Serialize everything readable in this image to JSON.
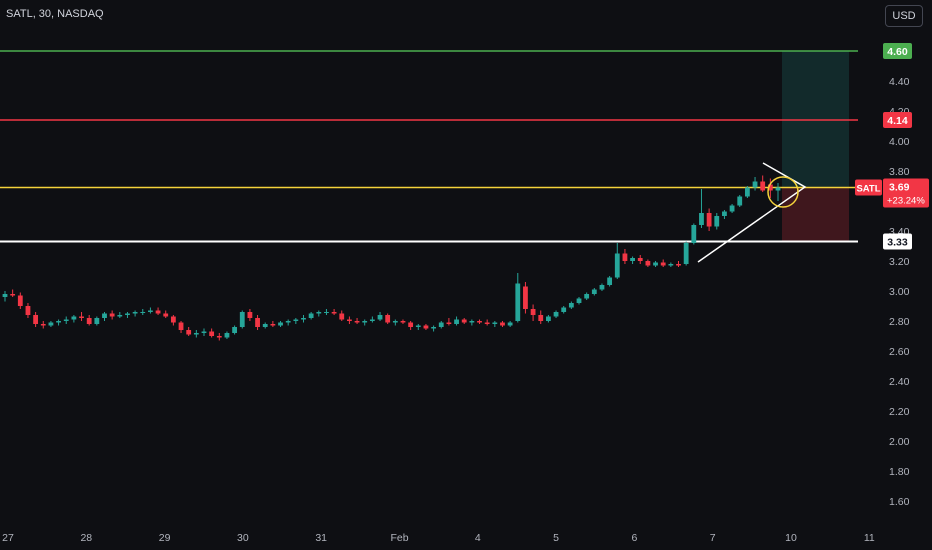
{
  "header": {
    "title": "SATL, 30, NASDAQ",
    "currency": "USD"
  },
  "colors": {
    "up": "#26a69a",
    "down": "#f23645",
    "green_line": "#4caf50",
    "red_line": "#f23645",
    "yellow_line": "#f5d33b",
    "white_line": "#ffffff",
    "bg": "#0e0f13"
  },
  "chart_data": {
    "type": "candlestick",
    "symbol": "SATL",
    "interval": "30",
    "exchange": "NASDAQ",
    "ylim": [
      1.5,
      4.75
    ],
    "y_ticks": [
      "1.60",
      "1.80",
      "2.00",
      "2.20",
      "2.40",
      "2.60",
      "2.80",
      "3.00",
      "3.20",
      "3.40",
      "3.60",
      "3.80",
      "4.00",
      "4.20",
      "4.40"
    ],
    "x_ticks": [
      {
        "label": "27",
        "day": 0
      },
      {
        "label": "28",
        "day": 1
      },
      {
        "label": "29",
        "day": 2
      },
      {
        "label": "30",
        "day": 3
      },
      {
        "label": "31",
        "day": 4
      },
      {
        "label": "Feb",
        "day": 5
      },
      {
        "label": "4",
        "day": 6
      },
      {
        "label": "5",
        "day": 7
      },
      {
        "label": "6",
        "day": 8
      },
      {
        "label": "7",
        "day": 9
      },
      {
        "label": "10",
        "day": 10
      },
      {
        "label": "11",
        "day": 11
      }
    ],
    "price_lines": [
      {
        "name": "target",
        "value": 4.6,
        "label": "4.60"
      },
      {
        "name": "stop",
        "value": 4.14,
        "label": "4.14"
      },
      {
        "name": "entry",
        "value": 3.69,
        "label": "3.69"
      },
      {
        "name": "support",
        "value": 3.33,
        "label": "3.33"
      }
    ],
    "last_price": {
      "symbol": "SATL",
      "price": "3.69",
      "change": "+23.24%"
    },
    "candles": [
      [
        2.96,
        3.0,
        2.93,
        2.98
      ],
      [
        2.98,
        3.01,
        2.96,
        2.97
      ],
      [
        2.97,
        2.99,
        2.88,
        2.9
      ],
      [
        2.9,
        2.92,
        2.82,
        2.84
      ],
      [
        2.84,
        2.86,
        2.76,
        2.78
      ],
      [
        2.78,
        2.8,
        2.75,
        2.77
      ],
      [
        2.77,
        2.8,
        2.76,
        2.79
      ],
      [
        2.79,
        2.81,
        2.77,
        2.8
      ],
      [
        2.8,
        2.83,
        2.78,
        2.81
      ],
      [
        2.81,
        2.84,
        2.79,
        2.83
      ],
      [
        2.83,
        2.86,
        2.8,
        2.82
      ],
      [
        2.82,
        2.84,
        2.77,
        2.78
      ],
      [
        2.78,
        2.83,
        2.77,
        2.82
      ],
      [
        2.82,
        2.86,
        2.8,
        2.85
      ],
      [
        2.85,
        2.87,
        2.81,
        2.83
      ],
      [
        2.83,
        2.86,
        2.82,
        2.84
      ],
      [
        2.84,
        2.86,
        2.82,
        2.85
      ],
      [
        2.85,
        2.87,
        2.83,
        2.86
      ],
      [
        2.86,
        2.88,
        2.84,
        2.86
      ],
      [
        2.86,
        2.89,
        2.85,
        2.87
      ],
      [
        2.87,
        2.89,
        2.84,
        2.85
      ],
      [
        2.85,
        2.87,
        2.82,
        2.83
      ],
      [
        2.83,
        2.84,
        2.77,
        2.79
      ],
      [
        2.79,
        2.8,
        2.72,
        2.74
      ],
      [
        2.74,
        2.76,
        2.7,
        2.71
      ],
      [
        2.71,
        2.74,
        2.69,
        2.72
      ],
      [
        2.72,
        2.75,
        2.7,
        2.73
      ],
      [
        2.73,
        2.75,
        2.69,
        2.7
      ],
      [
        2.7,
        2.72,
        2.67,
        2.69
      ],
      [
        2.69,
        2.73,
        2.68,
        2.72
      ],
      [
        2.72,
        2.77,
        2.71,
        2.76
      ],
      [
        2.76,
        2.87,
        2.75,
        2.86
      ],
      [
        2.86,
        2.88,
        2.8,
        2.82
      ],
      [
        2.82,
        2.84,
        2.74,
        2.76
      ],
      [
        2.76,
        2.79,
        2.75,
        2.78
      ],
      [
        2.78,
        2.8,
        2.76,
        2.77
      ],
      [
        2.77,
        2.8,
        2.76,
        2.79
      ],
      [
        2.79,
        2.81,
        2.77,
        2.8
      ],
      [
        2.8,
        2.82,
        2.78,
        2.81
      ],
      [
        2.81,
        2.84,
        2.79,
        2.82
      ],
      [
        2.82,
        2.86,
        2.81,
        2.85
      ],
      [
        2.85,
        2.87,
        2.83,
        2.86
      ],
      [
        2.86,
        2.88,
        2.84,
        2.86
      ],
      [
        2.86,
        2.88,
        2.84,
        2.85
      ],
      [
        2.85,
        2.87,
        2.8,
        2.81
      ],
      [
        2.81,
        2.83,
        2.78,
        2.8
      ],
      [
        2.8,
        2.82,
        2.78,
        2.79
      ],
      [
        2.79,
        2.81,
        2.77,
        2.8
      ],
      [
        2.8,
        2.83,
        2.79,
        2.81
      ],
      [
        2.81,
        2.86,
        2.8,
        2.84
      ],
      [
        2.84,
        2.85,
        2.78,
        2.79
      ],
      [
        2.79,
        2.81,
        2.77,
        2.8
      ],
      [
        2.8,
        2.81,
        2.78,
        2.79
      ],
      [
        2.79,
        2.8,
        2.74,
        2.76
      ],
      [
        2.76,
        2.78,
        2.74,
        2.77
      ],
      [
        2.77,
        2.78,
        2.74,
        2.75
      ],
      [
        2.75,
        2.77,
        2.73,
        2.76
      ],
      [
        2.76,
        2.8,
        2.75,
        2.79
      ],
      [
        2.79,
        2.82,
        2.77,
        2.78
      ],
      [
        2.78,
        2.83,
        2.77,
        2.81
      ],
      [
        2.81,
        2.82,
        2.78,
        2.79
      ],
      [
        2.79,
        2.81,
        2.77,
        2.8
      ],
      [
        2.8,
        2.81,
        2.78,
        2.79
      ],
      [
        2.79,
        2.81,
        2.77,
        2.78
      ],
      [
        2.78,
        2.8,
        2.76,
        2.79
      ],
      [
        2.79,
        2.8,
        2.76,
        2.77
      ],
      [
        2.77,
        2.8,
        2.76,
        2.79
      ],
      [
        2.8,
        3.12,
        2.79,
        3.05
      ],
      [
        3.03,
        3.06,
        2.85,
        2.88
      ],
      [
        2.88,
        2.91,
        2.8,
        2.84
      ],
      [
        2.84,
        2.87,
        2.78,
        2.8
      ],
      [
        2.8,
        2.84,
        2.79,
        2.83
      ],
      [
        2.83,
        2.87,
        2.82,
        2.86
      ],
      [
        2.86,
        2.9,
        2.85,
        2.89
      ],
      [
        2.89,
        2.93,
        2.88,
        2.92
      ],
      [
        2.92,
        2.96,
        2.91,
        2.95
      ],
      [
        2.95,
        2.99,
        2.94,
        2.98
      ],
      [
        2.98,
        3.02,
        2.97,
        3.01
      ],
      [
        3.01,
        3.05,
        3.0,
        3.04
      ],
      [
        3.04,
        3.1,
        3.03,
        3.09
      ],
      [
        3.09,
        3.32,
        3.08,
        3.25
      ],
      [
        3.25,
        3.28,
        3.18,
        3.2
      ],
      [
        3.2,
        3.23,
        3.18,
        3.22
      ],
      [
        3.22,
        3.24,
        3.18,
        3.2
      ],
      [
        3.2,
        3.21,
        3.16,
        3.17
      ],
      [
        3.17,
        3.2,
        3.16,
        3.19
      ],
      [
        3.19,
        3.21,
        3.16,
        3.17
      ],
      [
        3.17,
        3.19,
        3.16,
        3.18
      ],
      [
        3.18,
        3.2,
        3.16,
        3.17
      ],
      [
        3.18,
        3.33,
        3.17,
        3.32
      ],
      [
        3.32,
        3.45,
        3.31,
        3.44
      ],
      [
        3.44,
        3.68,
        3.42,
        3.52
      ],
      [
        3.52,
        3.55,
        3.4,
        3.43
      ],
      [
        3.43,
        3.52,
        3.41,
        3.5
      ],
      [
        3.5,
        3.54,
        3.48,
        3.53
      ],
      [
        3.53,
        3.58,
        3.52,
        3.57
      ],
      [
        3.57,
        3.64,
        3.56,
        3.63
      ],
      [
        3.63,
        3.7,
        3.62,
        3.69
      ],
      [
        3.69,
        3.76,
        3.67,
        3.73
      ],
      [
        3.73,
        3.77,
        3.66,
        3.67
      ],
      [
        3.71,
        3.75,
        3.62,
        3.67
      ],
      [
        3.67,
        3.72,
        3.6,
        3.69
      ]
    ]
  }
}
